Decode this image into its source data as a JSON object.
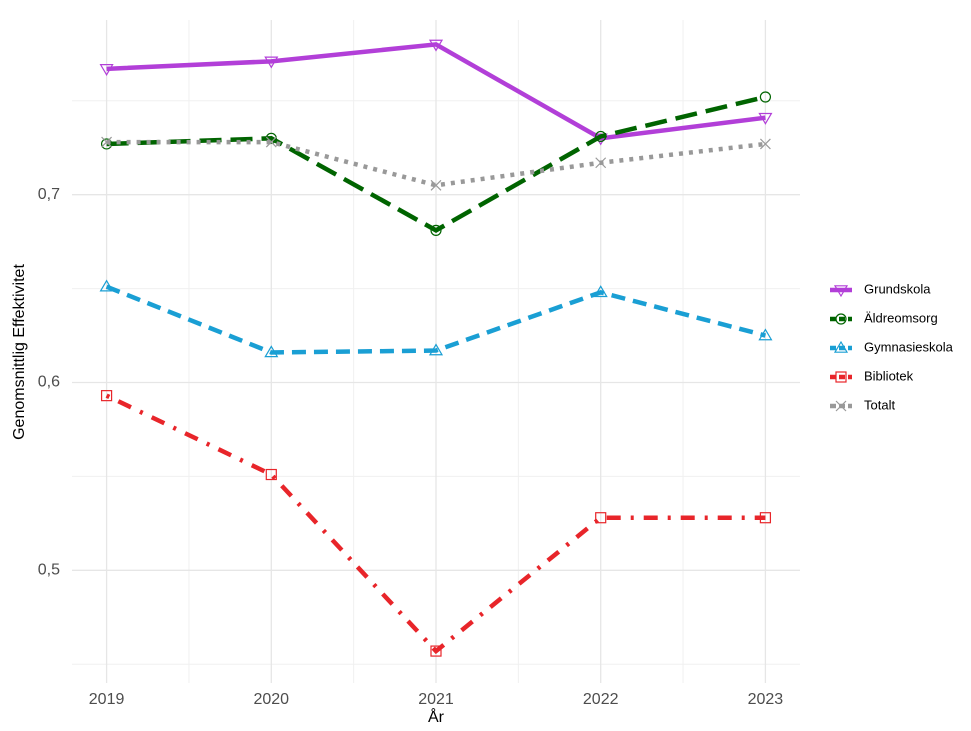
{
  "chart_data": {
    "type": "line",
    "x_label": "År",
    "y_label": "Genomsnittlig Effektivitet",
    "x": [
      2019,
      2020,
      2021,
      2022,
      2023
    ],
    "xlim": [
      2018.79,
      2023.21
    ],
    "xticks": [
      2019,
      2020,
      2021,
      2022,
      2023
    ],
    "x_minor_ticks": [
      2019.5,
      2020.5,
      2021.5,
      2022.5
    ],
    "ylim": [
      0.44,
      0.793
    ],
    "yticks": [
      {
        "value": 0.5,
        "label": "0,5"
      },
      {
        "value": 0.6,
        "label": "0,6"
      },
      {
        "value": 0.7,
        "label": "0,7"
      }
    ],
    "y_minor_ticks": [
      0.45,
      0.55,
      0.65,
      0.75
    ],
    "grid": true,
    "legend": "right",
    "series": [
      {
        "name": "Grundskola",
        "color": "#b23fd8",
        "dash": "solid",
        "marker": "triangle-down",
        "values": [
          0.767,
          0.771,
          0.78,
          0.73,
          0.741
        ]
      },
      {
        "name": "Äldreomsorg",
        "color": "#006400",
        "dash": "longdash",
        "marker": "circle",
        "values": [
          0.727,
          0.73,
          0.681,
          0.731,
          0.752
        ]
      },
      {
        "name": "Gymnasieskola",
        "color": "#1a9fd4",
        "dash": "dashed",
        "marker": "triangle-up",
        "values": [
          0.651,
          0.616,
          0.617,
          0.648,
          0.625
        ]
      },
      {
        "name": "Bibliotek",
        "color": "#e8252a",
        "dash": "dotdash",
        "marker": "square",
        "values": [
          0.593,
          0.551,
          0.457,
          0.528,
          0.528
        ]
      },
      {
        "name": "Totalt",
        "color": "#999999",
        "dash": "dotted",
        "marker": "cross",
        "values": [
          0.728,
          0.728,
          0.705,
          0.717,
          0.727
        ]
      }
    ]
  }
}
